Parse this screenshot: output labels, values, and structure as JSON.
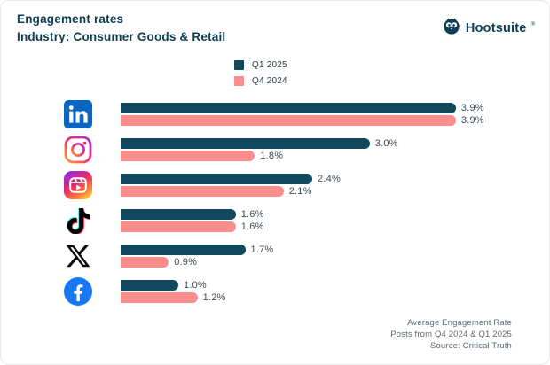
{
  "header": {
    "title": "Engagement rates",
    "subtitle": "Industry: Consumer Goods & Retail",
    "brand": "Hootsuite",
    "brand_mark": "®"
  },
  "legend": [
    {
      "label": "Q1 2025",
      "color": "#11485c"
    },
    {
      "label": "Q4 2024",
      "color": "#fa8e8c"
    }
  ],
  "chart_data": {
    "type": "bar",
    "orientation": "horizontal",
    "title": "Engagement rates — Industry: Consumer Goods & Retail",
    "categories": [
      "LinkedIn",
      "Instagram",
      "Instagram Reels",
      "TikTok",
      "X",
      "Facebook"
    ],
    "series": [
      {
        "name": "Q1 2025",
        "color": "#11485c",
        "values": [
          3.9,
          3.0,
          2.4,
          1.6,
          1.7,
          1.0
        ],
        "labels": [
          "3.9%",
          "3.0%",
          "2.4%",
          "1.6%",
          "1.7%",
          "1.0%"
        ]
      },
      {
        "name": "Q4 2024",
        "color": "#fa8e8c",
        "values": [
          3.9,
          1.8,
          2.1,
          1.6,
          0.9,
          1.2
        ],
        "labels": [
          "3.9%",
          "1.8%",
          "2.1%",
          "1.6%",
          "0.9%",
          "1.2%"
        ]
      }
    ],
    "value_suffix": "%",
    "xlim": [
      0,
      3.9
    ],
    "grid": false,
    "legend_position": "top-center",
    "value_labels": "outside-end"
  },
  "footer": {
    "line1": "Average Engagement Rate",
    "line2": "Posts from Q4 2024 & Q1 2025",
    "line3": "Source: Critical Truth"
  }
}
